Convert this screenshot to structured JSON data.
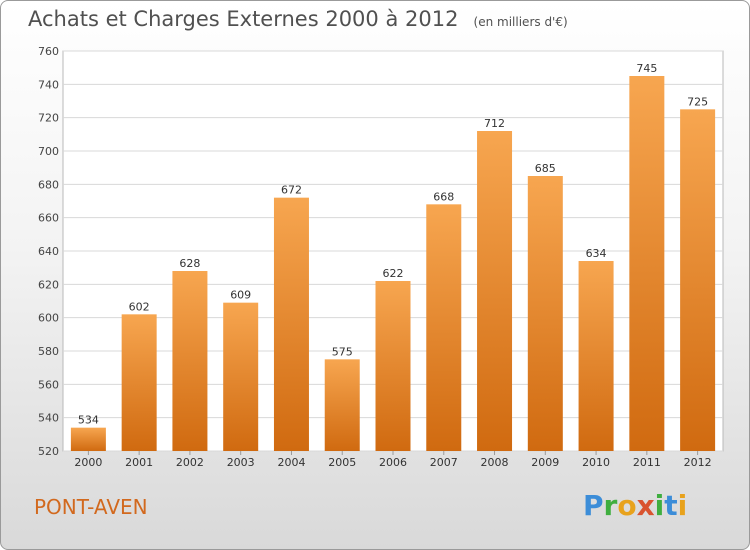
{
  "header": {
    "title": "Achats et Charges Externes 2000 à 2012",
    "subtitle": "(en milliers d'€)"
  },
  "footer": {
    "location": "PONT-AVEN",
    "logo_text": "Proxiti"
  },
  "colors": {
    "bar_top": "#f7a650",
    "bar_bottom": "#d06a10",
    "accent": "#d2691e"
  },
  "chart_data": {
    "type": "bar",
    "title": "Achats et Charges Externes 2000 à 2012",
    "subtitle": "(en milliers d'€)",
    "xlabel": "",
    "ylabel": "",
    "categories": [
      "2000",
      "2001",
      "2002",
      "2003",
      "2004",
      "2005",
      "2006",
      "2007",
      "2008",
      "2009",
      "2010",
      "2011",
      "2012"
    ],
    "values": [
      534,
      602,
      628,
      609,
      672,
      575,
      622,
      668,
      712,
      685,
      634,
      745,
      725
    ],
    "ylim": [
      520,
      760
    ],
    "yticks": [
      520,
      540,
      560,
      580,
      600,
      620,
      640,
      660,
      680,
      700,
      720,
      740,
      760
    ],
    "grid": true,
    "legend": "none"
  }
}
